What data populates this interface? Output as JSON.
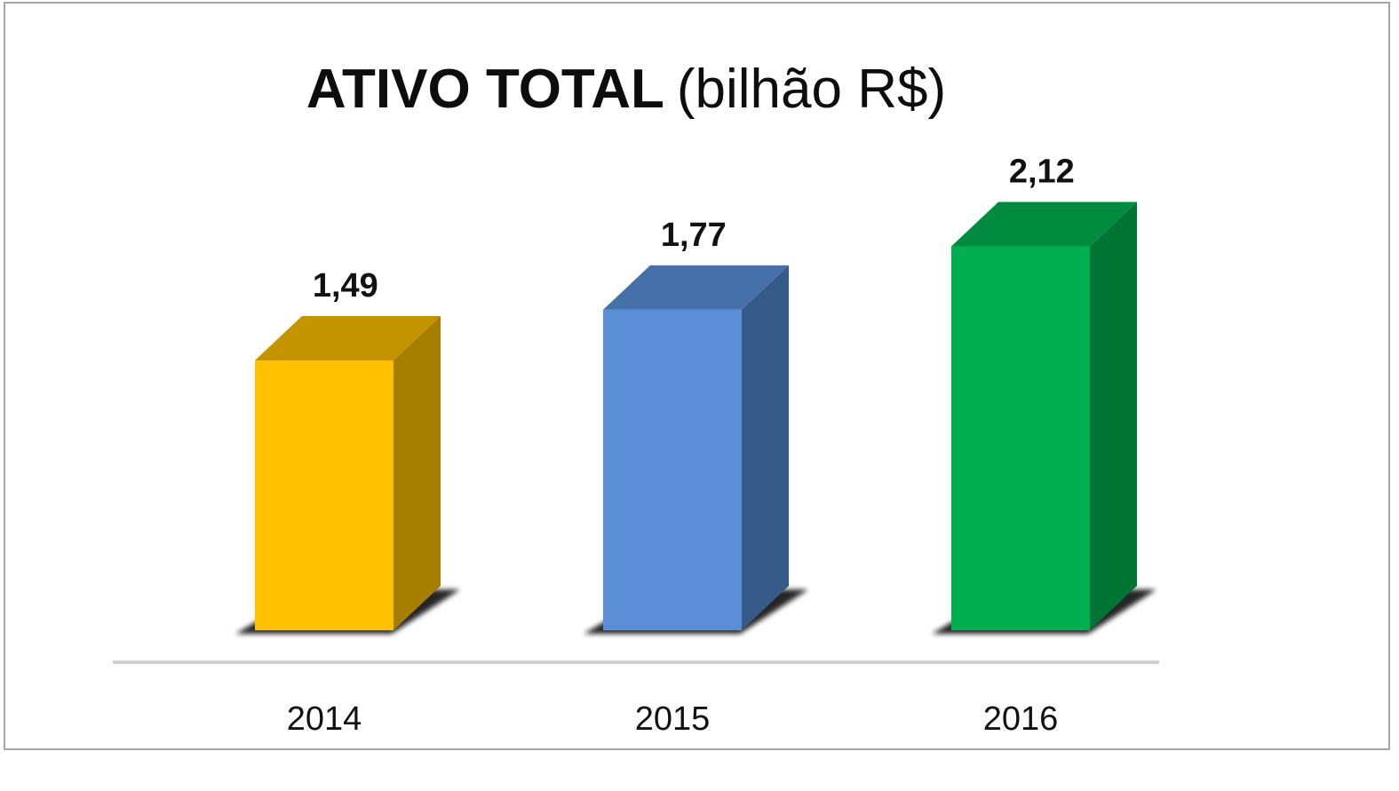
{
  "chart_data": {
    "type": "bar",
    "title": "ATIVO TOTAL",
    "title_unit": "(bilhão R$)",
    "categories": [
      "2014",
      "2015",
      "2016"
    ],
    "values": [
      1.49,
      1.77,
      2.12
    ],
    "value_labels": [
      "1,49",
      "1,77",
      "2,12"
    ],
    "colors": [
      {
        "front": "#ffc000",
        "top": "#c49400",
        "side": "#a67f00"
      },
      {
        "front": "#5a8ed6",
        "top": "#4670a8",
        "side": "#365a88"
      },
      {
        "front": "#00b050",
        "top": "#008b3e",
        "side": "#007433"
      }
    ],
    "xlabel": "",
    "ylabel": "",
    "style": "3d-columns",
    "grid": false,
    "legend": "none"
  }
}
